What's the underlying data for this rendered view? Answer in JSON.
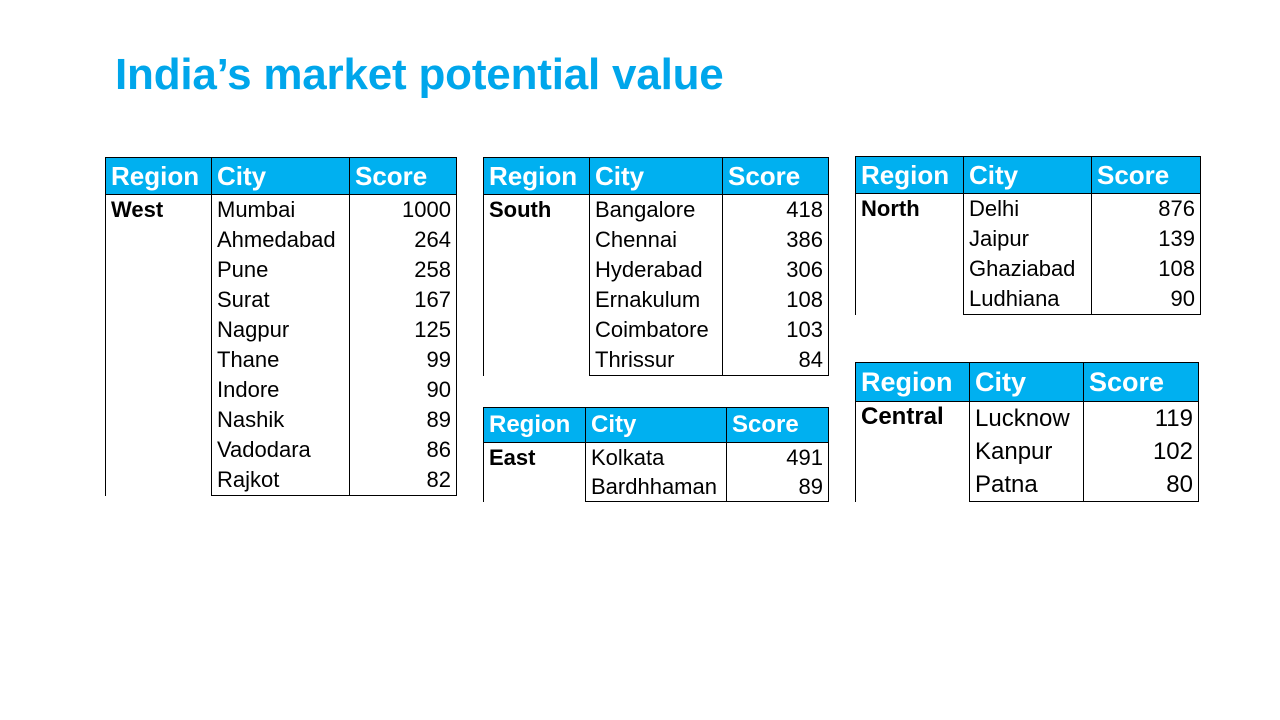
{
  "title": "India’s market potential value",
  "headers": {
    "region": "Region",
    "city": "City",
    "score": "Score"
  },
  "tables": [
    {
      "region": "West",
      "rows": [
        {
          "city": "Mumbai",
          "score": "1000"
        },
        {
          "city": "Ahmedabad",
          "score": "264"
        },
        {
          "city": "Pune",
          "score": "258"
        },
        {
          "city": "Surat",
          "score": "167"
        },
        {
          "city": "Nagpur",
          "score": "125"
        },
        {
          "city": "Thane",
          "score": "99"
        },
        {
          "city": "Indore",
          "score": "90"
        },
        {
          "city": "Nashik",
          "score": "89"
        },
        {
          "city": "Vadodara",
          "score": "86"
        },
        {
          "city": "Rajkot",
          "score": "82"
        }
      ]
    },
    {
      "region": "South",
      "rows": [
        {
          "city": "Bangalore",
          "score": "418"
        },
        {
          "city": "Chennai",
          "score": "386"
        },
        {
          "city": "Hyderabad",
          "score": "306"
        },
        {
          "city": "Ernakulum",
          "score": "108"
        },
        {
          "city": "Coimbatore",
          "score": "103"
        },
        {
          "city": "Thrissur",
          "score": "84"
        }
      ]
    },
    {
      "region": "East",
      "rows": [
        {
          "city": "Kolkata",
          "score": "491"
        },
        {
          "city": "Bardhhaman",
          "score": "89"
        }
      ]
    },
    {
      "region": "North",
      "rows": [
        {
          "city": "Delhi",
          "score": "876"
        },
        {
          "city": "Jaipur",
          "score": "139"
        },
        {
          "city": "Ghaziabad",
          "score": "108"
        },
        {
          "city": "Ludhiana",
          "score": "90"
        }
      ]
    },
    {
      "region": "Central",
      "rows": [
        {
          "city": "Lucknow",
          "score": "119"
        },
        {
          "city": "Kanpur",
          "score": "102"
        },
        {
          "city": "Patna",
          "score": "80"
        }
      ]
    }
  ]
}
